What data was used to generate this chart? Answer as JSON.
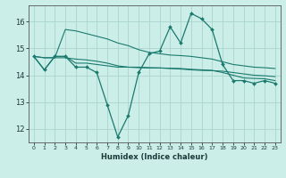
{
  "xlabel": "Humidex (Indice chaleur)",
  "bg_color": "#cceee8",
  "grid_color": "#aad4ce",
  "line_color": "#1a7a6e",
  "x_ticks": [
    0,
    1,
    2,
    3,
    4,
    5,
    6,
    7,
    8,
    9,
    10,
    11,
    12,
    13,
    14,
    15,
    16,
    17,
    18,
    19,
    20,
    21,
    22,
    23
  ],
  "ylim": [
    11.5,
    16.6
  ],
  "yticks": [
    12,
    13,
    14,
    15,
    16
  ],
  "series1": [
    14.7,
    14.2,
    14.7,
    14.7,
    14.3,
    14.3,
    14.1,
    12.9,
    11.7,
    12.5,
    14.1,
    14.8,
    14.9,
    15.8,
    15.2,
    16.3,
    16.1,
    15.7,
    14.4,
    13.8,
    13.8,
    13.7,
    13.8,
    13.7
  ],
  "series2": [
    14.7,
    14.2,
    14.7,
    14.7,
    14.45,
    14.45,
    14.4,
    14.35,
    14.3,
    14.3,
    14.3,
    14.28,
    14.27,
    14.25,
    14.23,
    14.2,
    14.18,
    14.17,
    14.15,
    14.1,
    14.05,
    14.0,
    13.98,
    13.95
  ],
  "series3": [
    14.7,
    14.65,
    14.65,
    14.65,
    14.6,
    14.57,
    14.52,
    14.45,
    14.35,
    14.3,
    14.28,
    14.27,
    14.27,
    14.26,
    14.25,
    14.22,
    14.2,
    14.18,
    14.1,
    14.0,
    13.9,
    13.88,
    13.87,
    13.8
  ],
  "series4": [
    14.7,
    14.65,
    14.65,
    15.7,
    15.65,
    15.55,
    15.45,
    15.35,
    15.2,
    15.1,
    14.95,
    14.85,
    14.8,
    14.75,
    14.73,
    14.7,
    14.65,
    14.6,
    14.5,
    14.4,
    14.35,
    14.3,
    14.28,
    14.25
  ]
}
